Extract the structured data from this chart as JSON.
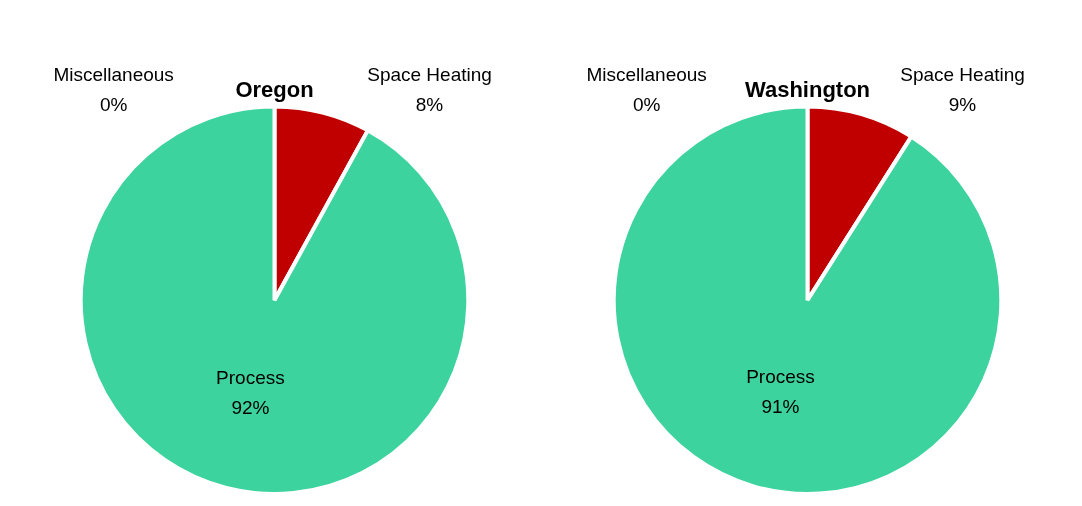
{
  "chart_data": [
    {
      "type": "pie",
      "title": "Oregon",
      "categories": [
        "Space Heating",
        "Process",
        "Miscellaneous"
      ],
      "values": [
        8,
        92,
        0
      ],
      "colors": [
        "#c00000",
        "#3dd39e",
        "#a5a5a5"
      ],
      "value_labels": [
        "8%",
        "92%",
        "0%"
      ],
      "legend": false
    },
    {
      "type": "pie",
      "title": "Washington",
      "categories": [
        "Space Heating",
        "Process",
        "Miscellaneous"
      ],
      "values": [
        9,
        91,
        0
      ],
      "colors": [
        "#c00000",
        "#3dd39e",
        "#a5a5a5"
      ],
      "value_labels": [
        "9%",
        "91%",
        "0%"
      ],
      "legend": false
    }
  ]
}
